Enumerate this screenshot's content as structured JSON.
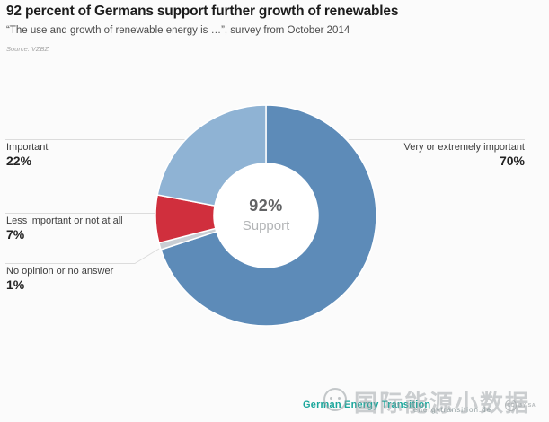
{
  "header": {
    "title": "92 percent of Germans support further growth of renewables",
    "subtitle": "“The use and growth of renewable energy is …”, survey from October 2014",
    "source": "Source: VZBZ"
  },
  "chart_data": {
    "type": "pie",
    "variant": "donut",
    "title": "92 percent of Germans support further growth of renewables",
    "unit": "%",
    "center_value": "92%",
    "center_label": "Support",
    "legend_position": "callout-labels",
    "slices": [
      {
        "label": "Very or extremely important",
        "value": 70,
        "display": "70%",
        "color": "#5d8bb8"
      },
      {
        "label": "No opinion or no answer",
        "value": 1,
        "display": "1%",
        "color": "#c9ced4"
      },
      {
        "label": "Less important or not at all",
        "value": 7,
        "display": "7%",
        "color": "#d02f3d"
      },
      {
        "label": "Important",
        "value": 22,
        "display": "22%",
        "color": "#8fb3d4"
      }
    ]
  },
  "footer": {
    "brand": "German Energy Transition",
    "brand_color": "#1aa69b",
    "url": "energytransition.de",
    "watermark": "国际能源小数据",
    "cc_initials": "CC",
    "cc_license": "BY SA"
  }
}
